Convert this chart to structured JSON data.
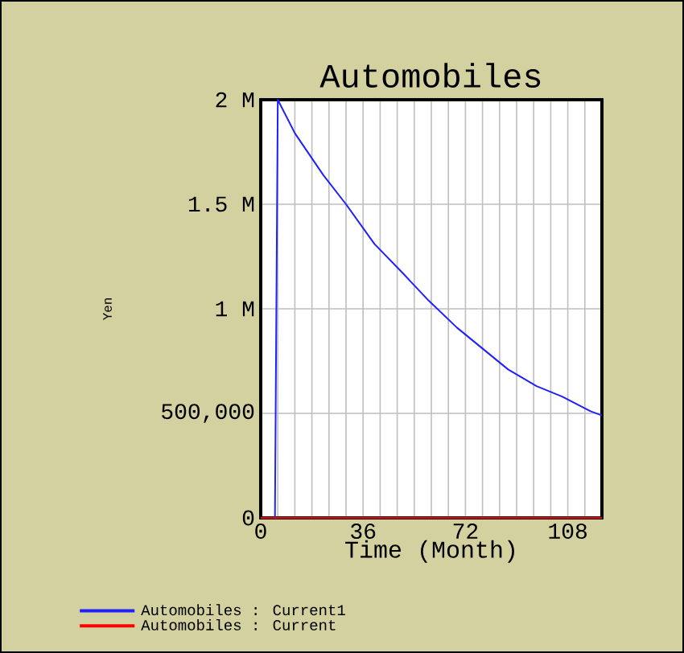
{
  "chart_data": {
    "type": "line",
    "title": "Automobiles",
    "xlabel": "Time (Month)",
    "ylabel": "Yen",
    "xlim": [
      0,
      120
    ],
    "ylim": [
      0,
      2000000
    ],
    "xticks": [
      0,
      {
        "value": 6,
        "label": null
      },
      {
        "value": 12,
        "label": null
      },
      {
        "value": 18,
        "label": null
      },
      {
        "value": 24,
        "label": null
      },
      {
        "value": 30,
        "label": null
      },
      36,
      {
        "value": 42,
        "label": null
      },
      {
        "value": 48,
        "label": null
      },
      {
        "value": 54,
        "label": null
      },
      {
        "value": 60,
        "label": null
      },
      {
        "value": 66,
        "label": null
      },
      72,
      {
        "value": 78,
        "label": null
      },
      {
        "value": 84,
        "label": null
      },
      {
        "value": 90,
        "label": null
      },
      {
        "value": 96,
        "label": null
      },
      {
        "value": 102,
        "label": null
      },
      108,
      {
        "value": 114,
        "label": null
      },
      {
        "value": 120,
        "label": null
      }
    ],
    "yticks": [
      0,
      {
        "value": 500000,
        "label": "500,000"
      },
      {
        "value": 1000000,
        "label": "1 M"
      },
      {
        "value": 1500000,
        "label": "1.5 M"
      },
      {
        "value": 2000000,
        "label": "2 M"
      }
    ],
    "grid": true,
    "legend": "bottom",
    "series": [
      {
        "name": "Automobiles : Current1",
        "color": "#2020ff",
        "x": [
          0,
          5,
          6,
          12,
          22,
          30,
          40,
          50,
          59,
          69,
          78,
          87,
          97,
          106,
          116,
          120
        ],
        "values": [
          0,
          0,
          2000000,
          1840000,
          1640000,
          1500000,
          1310000,
          1170000,
          1040000,
          910000,
          810000,
          710000,
          630000,
          580000,
          510000,
          490000
        ]
      },
      {
        "name": "Automobiles : Current",
        "color": "#ff0000",
        "x": [
          0,
          120
        ],
        "values": [
          0,
          0
        ]
      }
    ]
  }
}
